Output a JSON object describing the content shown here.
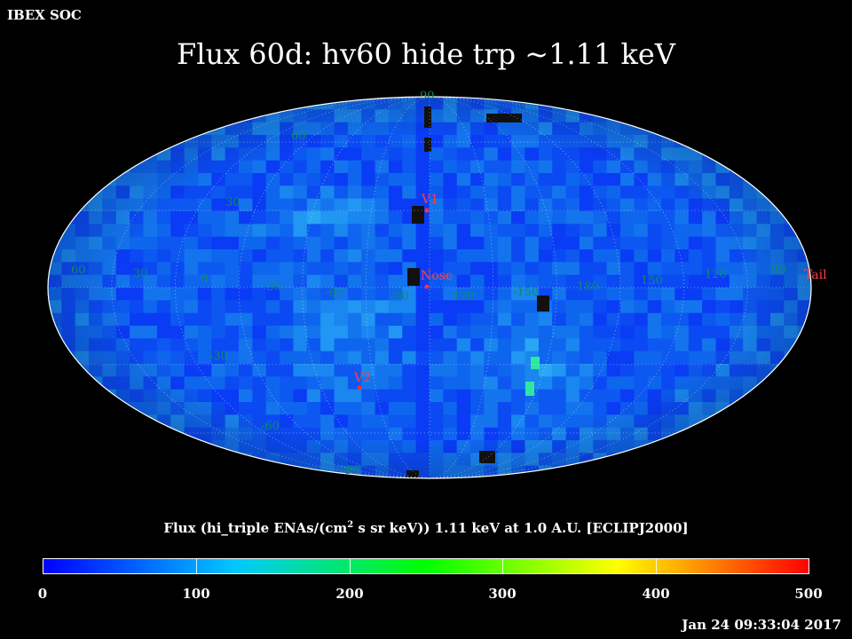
{
  "header": {
    "organization": "IBEX SOC",
    "title": "Flux   60d: hv60 hide trp ~1.11 keV"
  },
  "map": {
    "projection": "Mollweide",
    "frame": "ECLIPJ2000",
    "colormap": [
      "#0000ff",
      "#00c8ff",
      "#00ff00",
      "#ffff00",
      "#ff0000"
    ],
    "longitude_labels": [
      "60",
      "30",
      "0",
      "-30",
      "-60",
      "-90",
      "120",
      "-150",
      "180",
      "150",
      "120",
      "90"
    ],
    "latitude_labels": [
      "90",
      "60",
      "30",
      "-30",
      "-60",
      "-90"
    ],
    "markers": [
      {
        "label": "V1",
        "color": "#ff3030"
      },
      {
        "label": "Nose",
        "color": "#ff3030"
      },
      {
        "label": "V2",
        "color": "#ff3030"
      },
      {
        "label": "Tail",
        "color": "#ff3030"
      }
    ]
  },
  "colorbar": {
    "label_prefix": "Flux (hi_triple ENAs/(cm",
    "label_sup": "2",
    "label_suffix": " s sr keV))  1.11 keV at 1.0 A.U. [ECLIPJ2000]",
    "min": 0,
    "max": 500,
    "ticks": [
      "0",
      "100",
      "200",
      "300",
      "400",
      "500"
    ]
  },
  "footer": {
    "timestamp": "Jan 24 09:33:04 2017"
  }
}
